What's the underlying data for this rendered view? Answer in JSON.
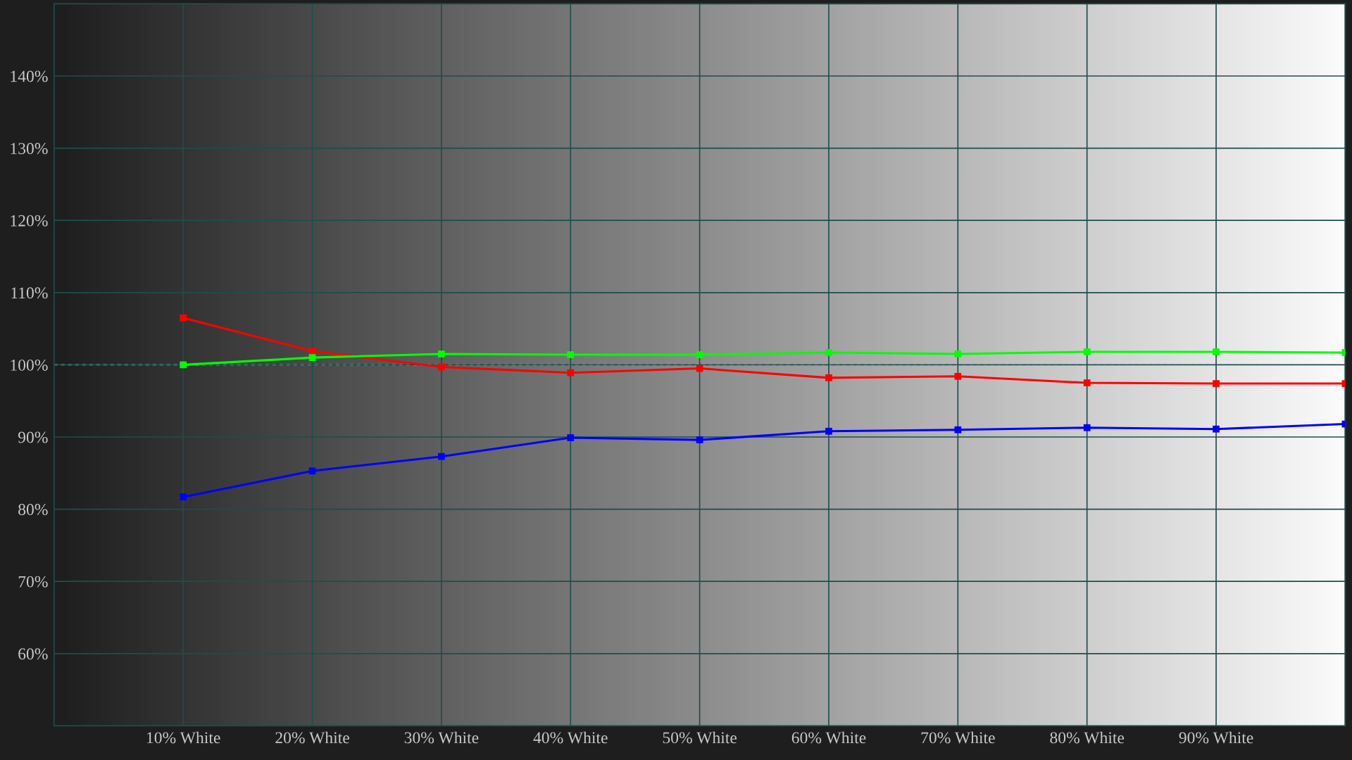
{
  "chart_data": {
    "type": "line",
    "categories": [
      "10% White",
      "20% White",
      "30% White",
      "40% White",
      "50% White",
      "60% White",
      "70% White",
      "80% White",
      "90% White",
      null
    ],
    "series": [
      {
        "color": "#ff0000",
        "values": [
          106.5,
          101.9,
          99.7,
          98.9,
          99.5,
          98.2,
          98.4,
          97.5,
          97.4,
          97.4
        ]
      },
      {
        "color": "#00ff00",
        "values": [
          100.0,
          101.0,
          101.5,
          101.4,
          101.4,
          101.7,
          101.5,
          101.8,
          101.8,
          101.7
        ]
      },
      {
        "color": "#0000ff",
        "values": [
          81.7,
          85.3,
          87.3,
          89.9,
          89.6,
          90.8,
          91.0,
          91.3,
          91.1,
          91.8
        ]
      }
    ],
    "ylim": [
      50,
      150
    ],
    "yticks": [
      {
        "value": 60,
        "label": "60%"
      },
      {
        "value": 70,
        "label": "70%"
      },
      {
        "value": 80,
        "label": "80%"
      },
      {
        "value": 90,
        "label": "90%"
      },
      {
        "value": 100,
        "label": "100%"
      },
      {
        "value": 110,
        "label": "110%"
      },
      {
        "value": 120,
        "label": "120%"
      },
      {
        "value": 130,
        "label": "130%"
      },
      {
        "value": 140,
        "label": "140%"
      }
    ],
    "grid": true,
    "marker": "square",
    "line_style": "solid",
    "ref_lines": [
      {
        "axis": "y",
        "value": 100,
        "color": "#ffffff",
        "line_style": "dashed"
      }
    ]
  }
}
